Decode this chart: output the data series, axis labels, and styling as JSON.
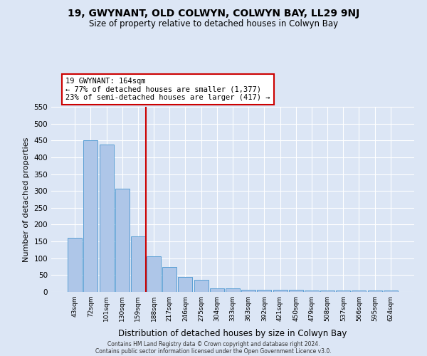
{
  "title": "19, GWYNANT, OLD COLWYN, COLWYN BAY, LL29 9NJ",
  "subtitle": "Size of property relative to detached houses in Colwyn Bay",
  "xlabel": "Distribution of detached houses by size in Colwyn Bay",
  "ylabel": "Number of detached properties",
  "bar_labels": [
    "43sqm",
    "72sqm",
    "101sqm",
    "130sqm",
    "159sqm",
    "188sqm",
    "217sqm",
    "246sqm",
    "275sqm",
    "304sqm",
    "333sqm",
    "363sqm",
    "392sqm",
    "421sqm",
    "450sqm",
    "479sqm",
    "508sqm",
    "537sqm",
    "566sqm",
    "595sqm",
    "624sqm"
  ],
  "bar_values": [
    160,
    450,
    437,
    307,
    165,
    106,
    75,
    44,
    35,
    10,
    10,
    7,
    7,
    7,
    7,
    5,
    5,
    5,
    5,
    5,
    5
  ],
  "bar_color": "#aec6e8",
  "bar_edge_color": "#5a9fd4",
  "red_line_x": 4.5,
  "red_line_color": "#cc0000",
  "annotation_text": "19 GWYNANT: 164sqm\n← 77% of detached houses are smaller (1,377)\n23% of semi-detached houses are larger (417) →",
  "annotation_box_color": "#ffffff",
  "annotation_border_color": "#cc0000",
  "background_color": "#dce6f5",
  "grid_color": "#ffffff",
  "ylim": [
    0,
    550
  ],
  "yticks": [
    0,
    50,
    100,
    150,
    200,
    250,
    300,
    350,
    400,
    450,
    500,
    550
  ],
  "footer_line1": "Contains HM Land Registry data © Crown copyright and database right 2024.",
  "footer_line2": "Contains public sector information licensed under the Open Government Licence v3.0."
}
